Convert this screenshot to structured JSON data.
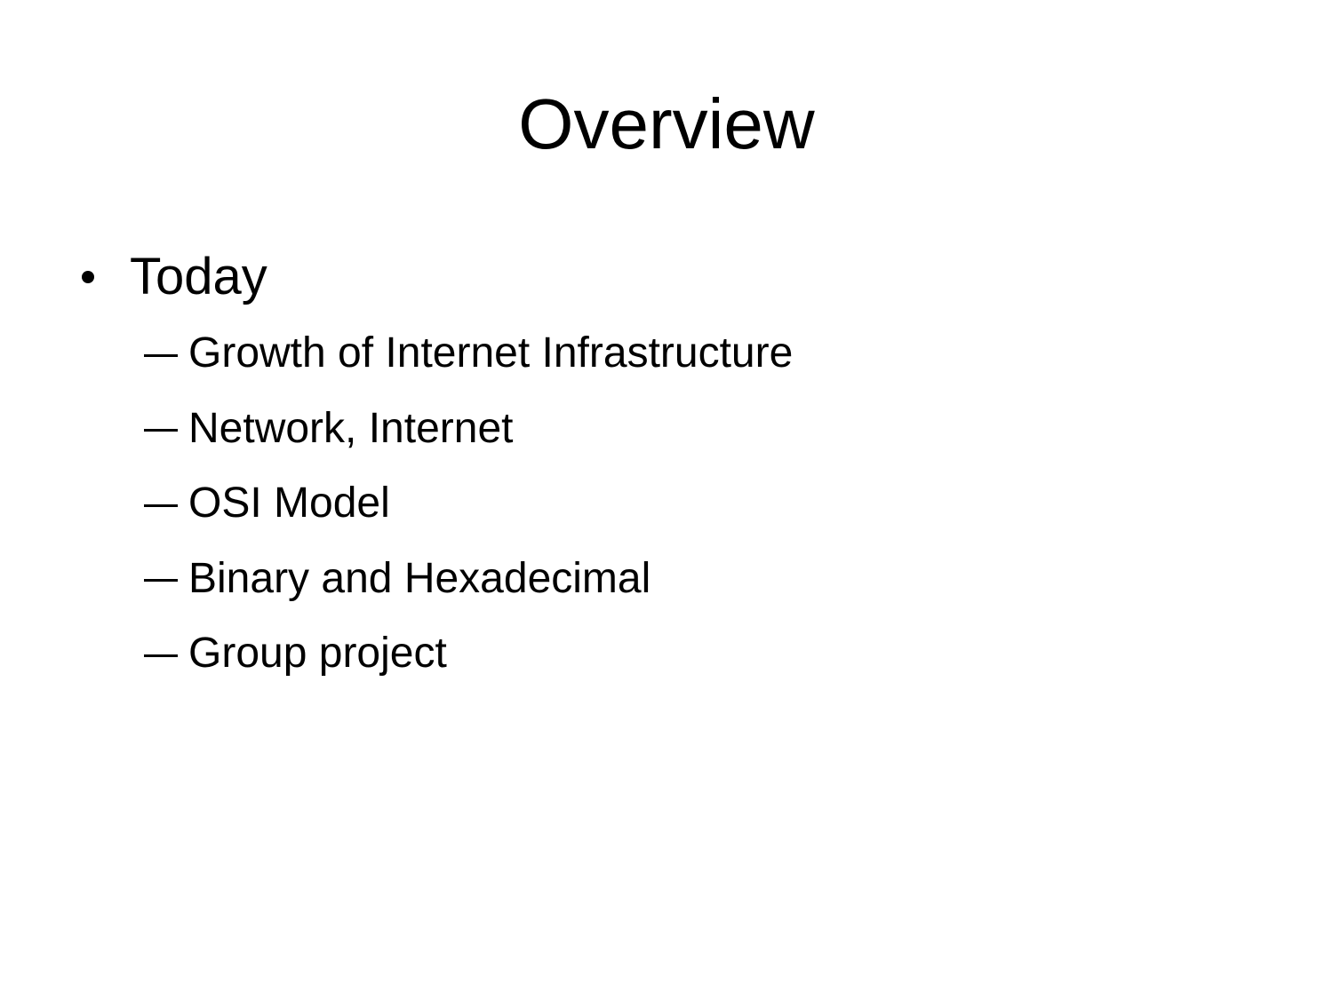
{
  "slide": {
    "title": "Overview",
    "bullet": {
      "label": "Today",
      "sub_items": [
        "Growth of Internet Infrastructure",
        "Network, Internet",
        "OSI Model",
        "Binary and Hexadecimal",
        "Group project"
      ]
    }
  }
}
